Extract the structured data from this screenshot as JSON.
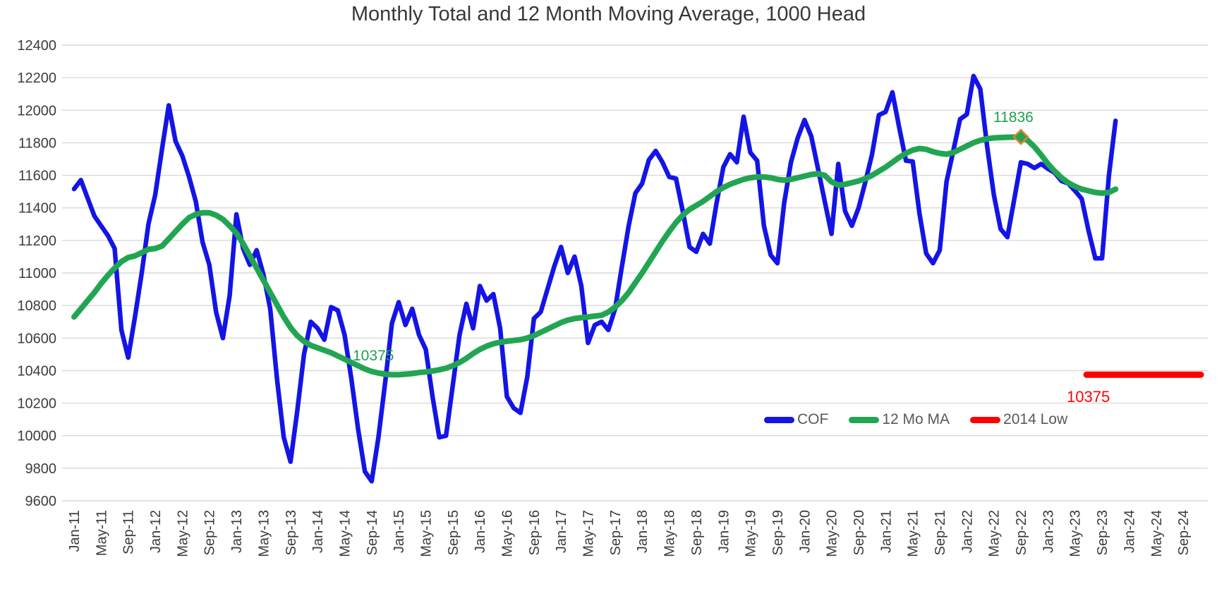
{
  "title": "Monthly Total and 12 Month Moving Average, 1000 Head",
  "legend": {
    "items": [
      {
        "label": "COF",
        "color": "#1414e6"
      },
      {
        "label": "12 Mo MA",
        "color": "#22a552"
      },
      {
        "label": "2014 Low",
        "color": "#ff0000"
      }
    ]
  },
  "annotations": {
    "ma_max_label": "11836",
    "ma_min_label": "10375",
    "low_line_label": "10375"
  },
  "chart_data": {
    "type": "line",
    "title": "Monthly Total and 12 Month Moving Average, 1000 Head",
    "xlabel": "",
    "ylabel": "",
    "grid": true,
    "legend_position": "inside-bottom-right",
    "y_axis": {
      "min": 9600,
      "max": 12400,
      "step": 200,
      "tick_labels": [
        "12400",
        "12200",
        "12000",
        "11800",
        "11600",
        "11400",
        "11200",
        "11000",
        "10800",
        "10600",
        "10400",
        "10200",
        "10000",
        "9800",
        "9600"
      ]
    },
    "x_axis": {
      "start_month": "Jan-11",
      "months_span": 166,
      "tick_every_months": 4,
      "tick_labels": [
        "Jan-11",
        "May-11",
        "Sep-11",
        "Jan-12",
        "May-12",
        "Sep-12",
        "Jan-13",
        "May-13",
        "Sep-13",
        "Jan-14",
        "May-14",
        "Sep-14",
        "Jan-15",
        "May-15",
        "Sep-15",
        "Jan-16",
        "May-16",
        "Sep-16",
        "Jan-17",
        "May-17",
        "Sep-17",
        "Jan-18",
        "May-18",
        "Sep-18",
        "Jan-19",
        "May-19",
        "Sep-19",
        "Jan-20",
        "May-20",
        "Sep-20",
        "Jan-21",
        "May-21",
        "Sep-21",
        "Jan-22",
        "May-22",
        "Sep-22",
        "Jan-23",
        "May-23",
        "Sep-23",
        "Jan-24",
        "May-24",
        "Sep-24"
      ]
    },
    "series": [
      {
        "name": "COF",
        "color": "#1414e6",
        "width": 6.5,
        "start_month": "Jan-11",
        "values": [
          11516,
          11571,
          11460,
          11350,
          11290,
          11230,
          11150,
          10650,
          10480,
          10730,
          11000,
          11300,
          11480,
          11760,
          12030,
          11810,
          11720,
          11590,
          11440,
          11190,
          11050,
          10760,
          10600,
          10860,
          11360,
          11150,
          11050,
          11140,
          10990,
          10780,
          10350,
          9990,
          9840,
          10150,
          10500,
          10700,
          10660,
          10590,
          10790,
          10770,
          10620,
          10350,
          10040,
          9780,
          9720,
          9990,
          10330,
          10690,
          10820,
          10680,
          10780,
          10620,
          10530,
          10240,
          9990,
          10000,
          10310,
          10620,
          10810,
          10660,
          10920,
          10830,
          10870,
          10660,
          10240,
          10170,
          10140,
          10360,
          10720,
          10760,
          10900,
          11040,
          11160,
          11000,
          11100,
          10920,
          10570,
          10680,
          10700,
          10650,
          10780,
          11040,
          11290,
          11490,
          11550,
          11695,
          11750,
          11680,
          11590,
          11580,
          11380,
          11160,
          11130,
          11240,
          11180,
          11430,
          11650,
          11730,
          11680,
          11960,
          11740,
          11690,
          11290,
          11110,
          11060,
          11430,
          11680,
          11830,
          11940,
          11840,
          11640,
          11440,
          11240,
          11670,
          11380,
          11290,
          11400,
          11560,
          11730,
          11970,
          11990,
          12110,
          11895,
          11690,
          11685,
          11365,
          11120,
          11060,
          11140,
          11560,
          11750,
          11945,
          11975,
          12210,
          12130,
          11780,
          11480,
          11270,
          11220,
          11450,
          11680,
          11670,
          11645,
          11670,
          11640,
          11615,
          11565,
          11550,
          11505,
          11455,
          11260,
          11090,
          11090,
          11595,
          11935
        ]
      },
      {
        "name": "12 Mo MA",
        "color": "#22a552",
        "width": 8,
        "start_month": "Jan-11",
        "values": [
          10730,
          10780,
          10830,
          10880,
          10935,
          10985,
          11030,
          11070,
          11095,
          11105,
          11125,
          11145,
          11150,
          11165,
          11210,
          11255,
          11300,
          11340,
          11360,
          11370,
          11370,
          11355,
          11330,
          11290,
          11245,
          11180,
          11105,
          11030,
          10955,
          10880,
          10805,
          10730,
          10665,
          10615,
          10580,
          10555,
          10540,
          10525,
          10510,
          10490,
          10470,
          10450,
          10430,
          10410,
          10395,
          10385,
          10378,
          10375,
          10375,
          10378,
          10382,
          10388,
          10392,
          10398,
          10405,
          10415,
          10430,
          10450,
          10475,
          10505,
          10530,
          10550,
          10565,
          10575,
          10580,
          10585,
          10590,
          10600,
          10615,
          10635,
          10655,
          10675,
          10695,
          10710,
          10720,
          10725,
          10730,
          10735,
          10740,
          10760,
          10790,
          10830,
          10880,
          10940,
          11000,
          11065,
          11130,
          11195,
          11255,
          11310,
          11355,
          11390,
          11415,
          11440,
          11470,
          11500,
          11525,
          11545,
          11560,
          11575,
          11585,
          11590,
          11590,
          11585,
          11575,
          11570,
          11575,
          11585,
          11595,
          11605,
          11610,
          11600,
          11560,
          11540,
          11545,
          11555,
          11565,
          11580,
          11600,
          11625,
          11650,
          11680,
          11710,
          11735,
          11755,
          11765,
          11760,
          11745,
          11735,
          11730,
          11740,
          11760,
          11780,
          11800,
          11815,
          11825,
          11830,
          11832,
          11834,
          11835,
          11836,
          11815,
          11775,
          11725,
          11670,
          11625,
          11585,
          11555,
          11532,
          11515,
          11505,
          11495,
          11490,
          11495,
          11515
        ]
      },
      {
        "name": "2014 Low",
        "color": "#ff0000",
        "width": 9,
        "type": "segment",
        "value": 10375,
        "start_month_index": 149.7,
        "end_month_index": 166.6
      }
    ],
    "marker": {
      "series": "12 Mo MA",
      "month_index": 140,
      "value": 11836,
      "shape": "diamond",
      "fill": "#22a552",
      "stroke": "#ed7d31"
    },
    "annotations": [
      {
        "text": "11836",
        "color": "#1fa04e",
        "attached_to": "ma-max"
      },
      {
        "text": "10375",
        "color": "#1fa04e",
        "attached_to": "ma-min"
      },
      {
        "text": "10375",
        "color": "#ff0000",
        "attached_to": "low-line"
      }
    ]
  }
}
